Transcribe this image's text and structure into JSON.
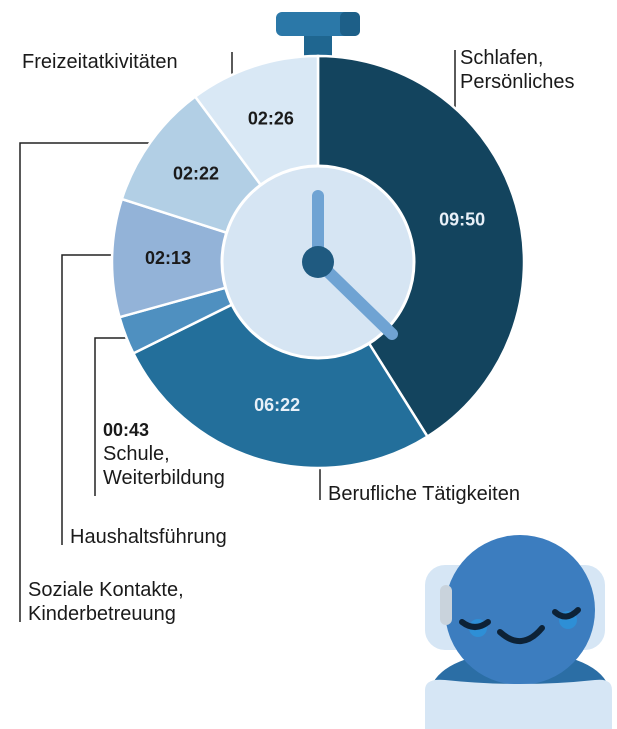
{
  "chart_data": {
    "type": "pie",
    "categories": [
      "Schlafen, Persönliches",
      "Berufliche Tätigkeiten",
      "Schule, Weiterbildung",
      "Haushaltsführung",
      "Soziale Kontakte, Kinderbetreuung",
      "Freizeitatkivitäten"
    ],
    "values": [
      590,
      382,
      43,
      133,
      142,
      146
    ],
    "value_labels": [
      "09:50",
      "06:22",
      "00:43",
      "02:13",
      "02:22",
      "02:26"
    ],
    "colors": [
      "#13445e",
      "#236f9b",
      "#4f90c0",
      "#93b3d8",
      "#b2cfe5",
      "#d9e8f5"
    ]
  }
}
